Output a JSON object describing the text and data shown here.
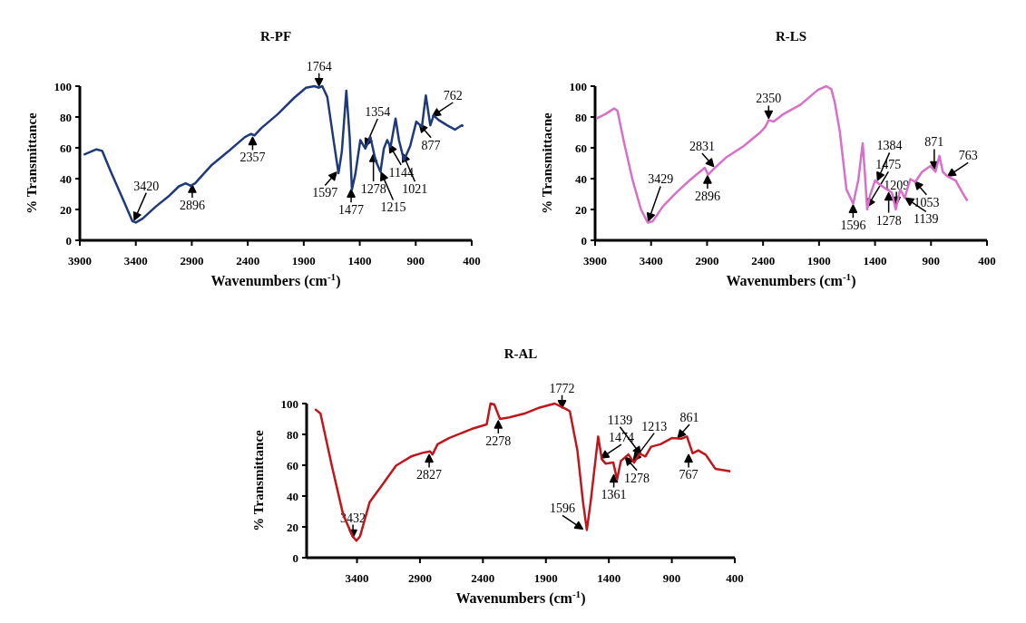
{
  "chart_data": [
    {
      "type": "line",
      "title": "R-PF",
      "xlabel": "Wavenumbers (cm$^{-1}$)",
      "ylabel": "% Transmittance",
      "xlim": [
        3900,
        400
      ],
      "xticks": [
        3900,
        3400,
        2900,
        2400,
        1900,
        1400,
        900,
        400
      ],
      "ylim": [
        0,
        100
      ],
      "yticks": [
        0,
        20,
        40,
        60,
        80,
        100
      ],
      "grid": false,
      "line_style": "solid",
      "marker": "none",
      "series": [
        {
          "color": "#1f3a7a",
          "x": [
            3865,
            3752,
            3700,
            3620,
            3520,
            3430,
            3400,
            3340,
            3220,
            3100,
            3015,
            2955,
            2910,
            2870,
            2825,
            2720,
            2575,
            2425,
            2370,
            2340,
            2280,
            2130,
            1985,
            1880,
            1805,
            1765,
            1735,
            1690,
            1630,
            1590,
            1560,
            1520,
            1490,
            1470,
            1440,
            1395,
            1350,
            1305,
            1260,
            1215,
            1185,
            1155,
            1125,
            1080,
            1050,
            1005,
            950,
            895,
            845,
            810,
            770,
            740,
            695,
            620,
            550,
            490,
            475
          ],
          "values": [
            55.5,
            59,
            58,
            44,
            27.5,
            12.4,
            11.5,
            14,
            22,
            29,
            35,
            37,
            35.4,
            37,
            40.7,
            49,
            57.6,
            67,
            69,
            68,
            72.7,
            82,
            92.5,
            99,
            100,
            99,
            100,
            93,
            63,
            43.5,
            57.6,
            97,
            67,
            33,
            42.6,
            65,
            59.5,
            67,
            52,
            44.4,
            59.5,
            65,
            60.5,
            79,
            65,
            52,
            61,
            77,
            73.6,
            94,
            74.6,
            81,
            78,
            74.6,
            71.8,
            74.6,
            74
          ]
        }
      ],
      "annotations": [
        {
          "text": "3420",
          "x": 3420,
          "y": 12
        },
        {
          "text": "2896",
          "x": 2896,
          "y": 37
        },
        {
          "text": "2357",
          "x": 2357,
          "y": 68
        },
        {
          "text": "1764",
          "x": 1764,
          "y": 99
        },
        {
          "text": "1597",
          "x": 1597,
          "y": 45
        },
        {
          "text": "1477",
          "x": 1477,
          "y": 34
        },
        {
          "text": "1354",
          "x": 1354,
          "y": 60
        },
        {
          "text": "1278",
          "x": 1278,
          "y": 57
        },
        {
          "text": "1215",
          "x": 1215,
          "y": 45
        },
        {
          "text": "1144",
          "x": 1144,
          "y": 63
        },
        {
          "text": "1021",
          "x": 1021,
          "y": 57
        },
        {
          "text": "877",
          "x": 877,
          "y": 76
        },
        {
          "text": "762",
          "x": 762,
          "y": 80
        }
      ]
    },
    {
      "type": "line",
      "title": "R-LS",
      "xlabel": "Wavenumbers (cm$^{-1}$)",
      "ylabel": "% Transmittacne",
      "xlim": [
        3900,
        400
      ],
      "xticks": [
        3900,
        3400,
        2900,
        2400,
        1900,
        1400,
        900,
        400
      ],
      "ylim": [
        0,
        100
      ],
      "yticks": [
        0,
        20,
        40,
        60,
        80,
        100
      ],
      "grid": false,
      "line_style": "solid",
      "marker": "none",
      "series": [
        {
          "color": "#d86fc8",
          "x": [
            3888,
            3805,
            3730,
            3700,
            3640,
            3565,
            3490,
            3430,
            3385,
            3295,
            3175,
            3055,
            2965,
            2920,
            2890,
            2845,
            2800,
            2725,
            2575,
            2425,
            2380,
            2350,
            2305,
            2215,
            2065,
            1910,
            1835,
            1790,
            1760,
            1715,
            1655,
            1595,
            1550,
            1510,
            1490,
            1470,
            1445,
            1400,
            1355,
            1295,
            1250,
            1215,
            1175,
            1135,
            1085,
            1040,
            980,
            905,
            860,
            825,
            795,
            755,
            680,
            620,
            575
          ],
          "values": [
            79,
            82,
            85.5,
            84,
            63,
            39,
            20,
            11.5,
            12.4,
            22,
            31,
            39,
            44.4,
            47,
            42.6,
            46,
            49,
            54,
            61,
            70,
            73.6,
            78,
            77,
            82,
            88,
            97.6,
            100,
            98,
            89.6,
            70.8,
            33,
            23.7,
            38.8,
            63,
            42.6,
            20,
            29,
            38.8,
            36,
            33,
            31,
            20,
            33,
            27.5,
            39.7,
            37.9,
            44.4,
            48.2,
            44.4,
            54.8,
            44.4,
            41.6,
            38.8,
            31,
            25.6
          ]
        }
      ],
      "annotations": [
        {
          "text": "3429",
          "x": 3429,
          "y": 11.5
        },
        {
          "text": "2896",
          "x": 2896,
          "y": 43
        },
        {
          "text": "2831",
          "x": 2831,
          "y": 47
        },
        {
          "text": "2350",
          "x": 2350,
          "y": 78
        },
        {
          "text": "1596",
          "x": 1596,
          "y": 24
        },
        {
          "text": "1475",
          "x": 1475,
          "y": 21
        },
        {
          "text": "1384",
          "x": 1384,
          "y": 38
        },
        {
          "text": "1278",
          "x": 1278,
          "y": 32
        },
        {
          "text": "1209",
          "x": 1209,
          "y": 22
        },
        {
          "text": "1139",
          "x": 1139,
          "y": 28
        },
        {
          "text": "1053",
          "x": 1053,
          "y": 39
        },
        {
          "text": "871",
          "x": 871,
          "y": 45
        },
        {
          "text": "763",
          "x": 763,
          "y": 41
        }
      ]
    },
    {
      "type": "line",
      "title": "R-AL",
      "xlabel": "Wavenumbers (cm$^{-1}$)",
      "ylabel": "% Transmittance",
      "xlim": [
        3800,
        400
      ],
      "xticks": [
        3400,
        2900,
        2400,
        1900,
        1400,
        900,
        400
      ],
      "ylim": [
        0,
        100
      ],
      "yticks": [
        0,
        20,
        40,
        60,
        80,
        100
      ],
      "grid": false,
      "line_style": "solid",
      "marker": "none",
      "series": [
        {
          "color": "#c0161c",
          "x": [
            3734,
            3690,
            3600,
            3510,
            3435,
            3405,
            3375,
            3300,
            3210,
            3090,
            2970,
            2880,
            2820,
            2800,
            2760,
            2670,
            2490,
            2370,
            2340,
            2310,
            2265,
            2190,
            2070,
            1950,
            1830,
            1740,
            1710,
            1650,
            1605,
            1575,
            1545,
            1485,
            1455,
            1425,
            1365,
            1335,
            1305,
            1245,
            1200,
            1155,
            1110,
            1065,
            990,
            900,
            825,
            780,
            735,
            690,
            630,
            555,
            435
          ],
          "values": [
            96.4,
            93.5,
            59.7,
            28,
            14,
            11,
            14,
            36,
            46,
            59.7,
            65.7,
            68,
            69,
            67,
            73.6,
            77.6,
            83.5,
            86.5,
            100,
            99.4,
            90,
            91,
            93.5,
            97.4,
            100,
            96.4,
            95,
            69.6,
            36,
            18,
            36,
            78.6,
            63.7,
            61,
            61.7,
            50.8,
            62.7,
            67,
            61.7,
            67.5,
            65.7,
            72,
            73.6,
            77.6,
            77.2,
            78.6,
            67.7,
            69.6,
            66.7,
            57.7,
            56
          ]
        }
      ],
      "annotations": [
        {
          "text": "3432",
          "x": 3432,
          "y": 12
        },
        {
          "text": "2827",
          "x": 2827,
          "y": 68
        },
        {
          "text": "2278",
          "x": 2278,
          "y": 90
        },
        {
          "text": "1772",
          "x": 1772,
          "y": 96
        },
        {
          "text": "1596",
          "x": 1596,
          "y": 18
        },
        {
          "text": "1474",
          "x": 1474,
          "y": 64
        },
        {
          "text": "1361",
          "x": 1361,
          "y": 55
        },
        {
          "text": "1278",
          "x": 1278,
          "y": 66
        },
        {
          "text": "1213",
          "x": 1213,
          "y": 62
        },
        {
          "text": "1139",
          "x": 1139,
          "y": 66
        },
        {
          "text": "861",
          "x": 861,
          "y": 77
        },
        {
          "text": "767",
          "x": 767,
          "y": 68
        }
      ]
    }
  ]
}
